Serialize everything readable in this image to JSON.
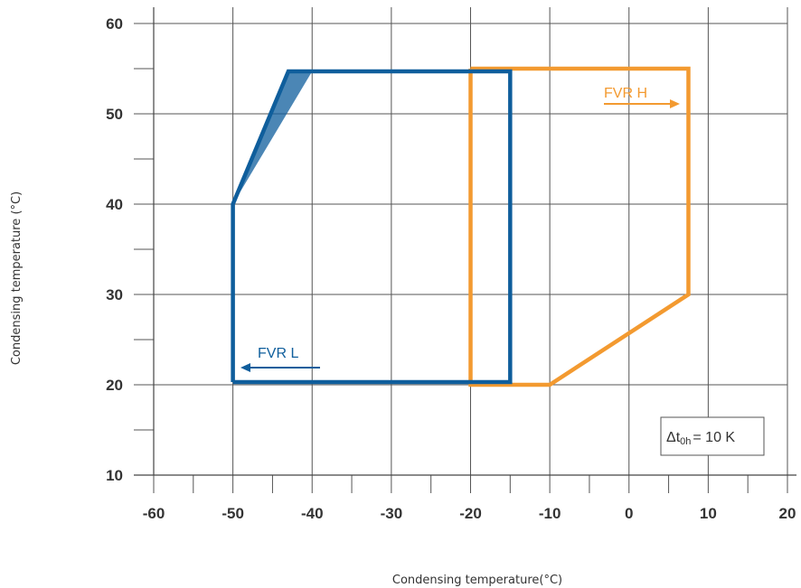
{
  "chart_data": {
    "type": "line",
    "title": "",
    "xlabel": "Condensing temperature(°C)",
    "ylabel": "Condensing temperature (°C)",
    "xlim": [
      -60,
      20
    ],
    "ylim": [
      10,
      60
    ],
    "x_ticks": [
      -60,
      -50,
      -40,
      -30,
      -20,
      -10,
      0,
      10,
      20
    ],
    "x_tick_labels": [
      "-60",
      "-50",
      "-40",
      "-30",
      "-20",
      "-10",
      "0",
      "10",
      "20"
    ],
    "y_ticks": [
      10,
      20,
      30,
      40,
      50,
      60
    ],
    "y_tick_labels": [
      "10",
      "20",
      "30",
      "40",
      "50",
      "60"
    ],
    "grid": true,
    "series": [
      {
        "name": "FVR L",
        "color": "#0f5e9c",
        "points": [
          [
            -50,
            20.3
          ],
          [
            -50,
            40
          ],
          [
            -43,
            54.7
          ],
          [
            -15,
            54.7
          ],
          [
            -15,
            20.3
          ],
          [
            -50,
            20.3
          ]
        ],
        "shaded_points": [
          [
            -50,
            40
          ],
          [
            -43,
            54.7
          ],
          [
            -40,
            54.7
          ],
          [
            -50,
            40
          ]
        ],
        "arrow_direction": "left"
      },
      {
        "name": "FVR H",
        "color": "#f39a30",
        "points": [
          [
            -20,
            55
          ],
          [
            7.5,
            55
          ],
          [
            7.5,
            30
          ],
          [
            -10,
            20
          ],
          [
            -20,
            20
          ],
          [
            -20,
            55
          ]
        ],
        "arrow_direction": "right"
      }
    ],
    "annotation": {
      "delta_prefix": "Δt",
      "delta_sub": "0h",
      "delta_suffix": "= 10 K"
    }
  }
}
